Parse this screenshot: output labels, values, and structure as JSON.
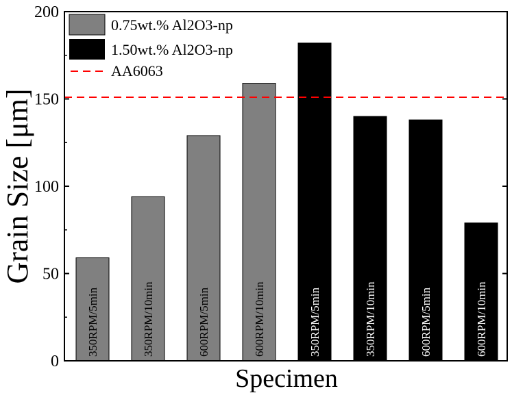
{
  "chart_data": {
    "type": "bar",
    "xlabel": "Specimen",
    "ylabel": "Grain Size [μm]",
    "ylim": [
      0,
      200
    ],
    "yticks": [
      "0",
      "50",
      "100",
      "150",
      "200"
    ],
    "grid": false,
    "legend_position": "top-left",
    "reference_line": {
      "name": "AA6063",
      "value": 151,
      "color": "#ff0000",
      "style": "dashed"
    },
    "series": [
      {
        "name": "0.75wt.% Al2O3-np",
        "color": "#808080"
      },
      {
        "name": "1.50wt.% Al2O3-np",
        "color": "#000000"
      }
    ],
    "bars": [
      {
        "label": "350RPM/5min",
        "value": 59,
        "series": 0
      },
      {
        "label": "350RPM/10min",
        "value": 94,
        "series": 0
      },
      {
        "label": "600RPM/5min",
        "value": 129,
        "series": 0
      },
      {
        "label": "600RPM/10min",
        "value": 159,
        "series": 0
      },
      {
        "label": "350RPM/5min",
        "value": 182,
        "series": 1
      },
      {
        "label": "350RPM/10min",
        "value": 140,
        "series": 1
      },
      {
        "label": "600RPM/5min",
        "value": 138,
        "series": 1
      },
      {
        "label": "600RPM/10min",
        "value": 79,
        "series": 1
      }
    ]
  }
}
